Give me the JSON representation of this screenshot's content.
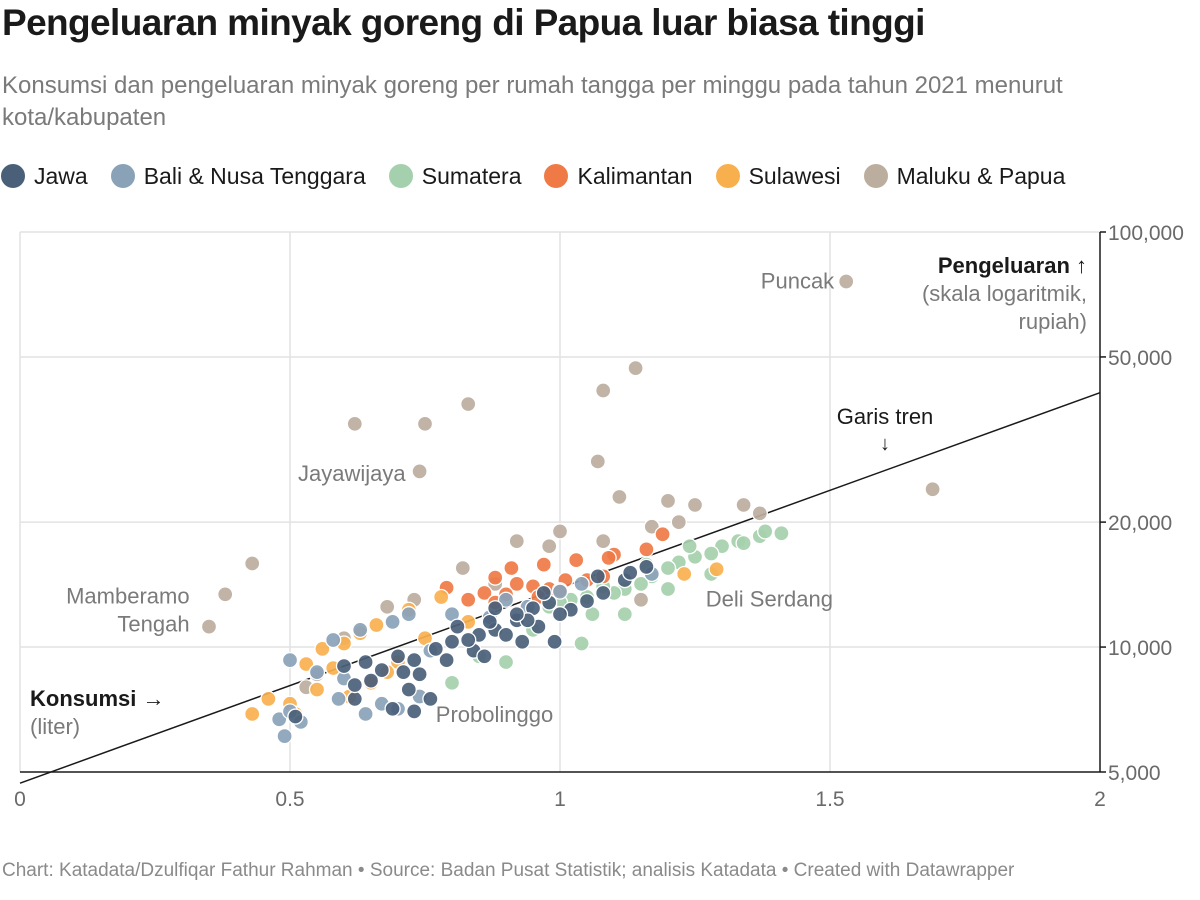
{
  "title": "Pengeluaran minyak goreng di Papua luar biasa tinggi",
  "subtitle": "Konsumsi dan pengeluaran minyak goreng per rumah tangga per minggu pada tahun 2021 menurut kota/kabupaten",
  "footer": "Chart: Katadata/Dzulfiqar Fathur Rahman • Source: Badan Pusat Statistik; analisis Katadata • Created with Datawrapper",
  "legend": [
    {
      "label": "Jawa",
      "color": "#4a6079"
    },
    {
      "label": "Bali & Nusa Tenggara",
      "color": "#8aa2b8"
    },
    {
      "label": "Sumatera",
      "color": "#a5d0ad"
    },
    {
      "label": "Kalimantan",
      "color": "#f07a46"
    },
    {
      "label": "Sulawesi",
      "color": "#f8b04e"
    },
    {
      "label": "Maluku & Papua",
      "color": "#bcae9f"
    }
  ],
  "chart_data": {
    "type": "scatter",
    "xlabel_bold": "Konsumsi →",
    "xlabel_sub": "(liter)",
    "ylabel_bold": "Pengeluaran ↑",
    "ylabel_sub1": "(skala logaritmik,",
    "ylabel_sub2": "rupiah)",
    "xlim": [
      0,
      2
    ],
    "ylim": [
      5000,
      100000
    ],
    "y_scale": "log",
    "grid": true,
    "x_ticks": [
      {
        "value": 0,
        "label": "0"
      },
      {
        "value": 0.5,
        "label": "0.5"
      },
      {
        "value": 1,
        "label": "1"
      },
      {
        "value": 1.5,
        "label": "1.5"
      },
      {
        "value": 2,
        "label": "2"
      }
    ],
    "y_ticks": [
      {
        "value": 5000,
        "label": "5,000"
      },
      {
        "value": 10000,
        "label": "10,000"
      },
      {
        "value": 20000,
        "label": "20,000"
      },
      {
        "value": 50000,
        "label": "50,000"
      },
      {
        "value": 100000,
        "label": "100,000"
      }
    ],
    "trend_label": "Garis tren",
    "trend_arrow": "↓",
    "trend_line": [
      [
        0,
        4700
      ],
      [
        2,
        41000
      ]
    ],
    "annotations": [
      {
        "text": "Puncak",
        "x": 1.53,
        "y": 76000
      },
      {
        "text": "Jayawijaya",
        "x": 0.74,
        "y": 26300
      },
      {
        "text": "Mamberamo",
        "x": 0.34,
        "y": 13300
      },
      {
        "text": "Tengah",
        "x": 0.34,
        "y": 11400
      },
      {
        "text": "Deli Serdang",
        "x": 1.27,
        "y": 13100
      },
      {
        "text": "Probolinggo",
        "x": 0.77,
        "y": 6900
      }
    ],
    "series": [
      {
        "name": "Maluku & Papua",
        "color": "#bcae9f",
        "points": [
          [
            1.53,
            76000
          ],
          [
            1.14,
            47000
          ],
          [
            1.08,
            41500
          ],
          [
            0.83,
            38500
          ],
          [
            0.75,
            34500
          ],
          [
            0.62,
            34500
          ],
          [
            1.07,
            28000
          ],
          [
            0.74,
            26500
          ],
          [
            1.69,
            24000
          ],
          [
            1.11,
            23000
          ],
          [
            1.2,
            22500
          ],
          [
            1.25,
            22000
          ],
          [
            1.34,
            22000
          ],
          [
            1.37,
            21000
          ],
          [
            1.22,
            20000
          ],
          [
            1.17,
            19500
          ],
          [
            1.0,
            19000
          ],
          [
            0.43,
            15900
          ],
          [
            0.38,
            13400
          ],
          [
            0.35,
            11200
          ],
          [
            0.92,
            18000
          ],
          [
            0.98,
            17500
          ],
          [
            1.08,
            18000
          ],
          [
            0.82,
            15500
          ],
          [
            0.73,
            13000
          ],
          [
            0.68,
            12500
          ],
          [
            0.88,
            14200
          ],
          [
            0.55,
            8600
          ],
          [
            0.6,
            10500
          ],
          [
            0.53,
            8000
          ],
          [
            1.15,
            13000
          ]
        ]
      },
      {
        "name": "Sumatera",
        "color": "#a5d0ad",
        "points": [
          [
            1.41,
            18800
          ],
          [
            1.37,
            18500
          ],
          [
            1.33,
            18000
          ],
          [
            1.3,
            17500
          ],
          [
            1.28,
            16800
          ],
          [
            1.25,
            16500
          ],
          [
            1.22,
            16000
          ],
          [
            1.28,
            15000
          ],
          [
            1.2,
            15500
          ],
          [
            1.17,
            14800
          ],
          [
            1.15,
            14200
          ],
          [
            1.12,
            13800
          ],
          [
            1.1,
            13500
          ],
          [
            1.08,
            14000
          ],
          [
            1.05,
            13200
          ],
          [
            1.02,
            13000
          ],
          [
            1.0,
            12800
          ],
          [
            0.98,
            12500
          ],
          [
            1.2,
            13800
          ],
          [
            1.12,
            12000
          ],
          [
            1.04,
            10200
          ],
          [
            0.85,
            9500
          ],
          [
            0.9,
            9200
          ],
          [
            0.8,
            8200
          ],
          [
            0.95,
            11000
          ],
          [
            1.16,
            15800
          ],
          [
            1.24,
            17500
          ],
          [
            1.34,
            17800
          ],
          [
            1.38,
            19000
          ],
          [
            1.06,
            12000
          ]
        ]
      },
      {
        "name": "Kalimantan",
        "color": "#f07a46",
        "points": [
          [
            1.19,
            18700
          ],
          [
            1.16,
            17200
          ],
          [
            1.1,
            16700
          ],
          [
            1.03,
            16200
          ],
          [
            1.09,
            16400
          ],
          [
            0.97,
            15800
          ],
          [
            0.91,
            15500
          ],
          [
            0.88,
            14700
          ],
          [
            0.92,
            14200
          ],
          [
            0.95,
            14000
          ],
          [
            1.01,
            14500
          ],
          [
            1.05,
            14500
          ],
          [
            1.08,
            14800
          ],
          [
            0.98,
            13800
          ],
          [
            0.79,
            13900
          ],
          [
            0.86,
            13500
          ],
          [
            0.83,
            13000
          ],
          [
            0.88,
            12800
          ],
          [
            0.96,
            13200
          ],
          [
            1.0,
            13700
          ],
          [
            0.9,
            13400
          ]
        ]
      },
      {
        "name": "Sulawesi",
        "color": "#f8b04e",
        "points": [
          [
            1.29,
            15400
          ],
          [
            1.23,
            15000
          ],
          [
            0.78,
            13200
          ],
          [
            0.72,
            12300
          ],
          [
            0.66,
            11300
          ],
          [
            0.63,
            10800
          ],
          [
            0.56,
            9900
          ],
          [
            0.53,
            9100
          ],
          [
            0.58,
            8900
          ],
          [
            0.55,
            7900
          ],
          [
            0.5,
            7300
          ],
          [
            0.46,
            7500
          ],
          [
            0.43,
            6900
          ],
          [
            0.51,
            6900
          ],
          [
            0.65,
            8200
          ],
          [
            0.7,
            9200
          ],
          [
            0.75,
            10500
          ],
          [
            0.68,
            8700
          ],
          [
            0.61,
            7600
          ],
          [
            0.6,
            10200
          ],
          [
            0.83,
            11500
          ]
        ]
      },
      {
        "name": "Bali & Nusa Tenggara",
        "color": "#8aa2b8",
        "points": [
          [
            0.49,
            6100
          ],
          [
            0.48,
            6700
          ],
          [
            0.52,
            6600
          ],
          [
            0.5,
            7000
          ],
          [
            0.64,
            6900
          ],
          [
            0.67,
            7300
          ],
          [
            0.7,
            7100
          ],
          [
            0.74,
            7600
          ],
          [
            0.59,
            7500
          ],
          [
            0.5,
            9300
          ],
          [
            0.58,
            10400
          ],
          [
            0.63,
            11000
          ],
          [
            0.69,
            11500
          ],
          [
            0.72,
            12000
          ],
          [
            0.8,
            12000
          ],
          [
            0.87,
            11800
          ],
          [
            0.9,
            13000
          ],
          [
            0.94,
            12500
          ],
          [
            1.0,
            13600
          ],
          [
            1.04,
            14200
          ],
          [
            1.17,
            15000
          ],
          [
            0.6,
            8400
          ],
          [
            0.76,
            9800
          ],
          [
            0.55,
            8700
          ]
        ]
      },
      {
        "name": "Jawa",
        "color": "#4a6079",
        "points": [
          [
            0.51,
            6800
          ],
          [
            0.62,
            7500
          ],
          [
            0.69,
            7100
          ],
          [
            0.73,
            7000
          ],
          [
            0.76,
            7500
          ],
          [
            0.6,
            9000
          ],
          [
            0.64,
            9200
          ],
          [
            0.67,
            8800
          ],
          [
            0.7,
            9500
          ],
          [
            0.73,
            9300
          ],
          [
            0.77,
            9900
          ],
          [
            0.8,
            10300
          ],
          [
            0.85,
            10700
          ],
          [
            0.88,
            11000
          ],
          [
            0.92,
            11600
          ],
          [
            0.95,
            12400
          ],
          [
            0.98,
            12800
          ],
          [
            1.02,
            12300
          ],
          [
            1.05,
            12900
          ],
          [
            1.08,
            13500
          ],
          [
            1.12,
            14500
          ],
          [
            1.16,
            15600
          ],
          [
            1.13,
            15100
          ],
          [
            0.96,
            11200
          ],
          [
            0.9,
            10700
          ],
          [
            0.84,
            9800
          ],
          [
            0.79,
            9300
          ],
          [
            0.74,
            8600
          ],
          [
            0.72,
            7900
          ],
          [
            0.83,
            10400
          ],
          [
            0.87,
            11500
          ],
          [
            0.93,
            10300
          ],
          [
            0.99,
            10300
          ],
          [
            0.71,
            8700
          ],
          [
            0.65,
            8300
          ],
          [
            0.62,
            8100
          ],
          [
            0.88,
            12400
          ],
          [
            0.94,
            11600
          ],
          [
            1.0,
            12000
          ],
          [
            0.81,
            11200
          ],
          [
            0.86,
            9500
          ],
          [
            0.92,
            12000
          ],
          [
            1.07,
            14800
          ],
          [
            0.97,
            13500
          ]
        ]
      }
    ]
  }
}
